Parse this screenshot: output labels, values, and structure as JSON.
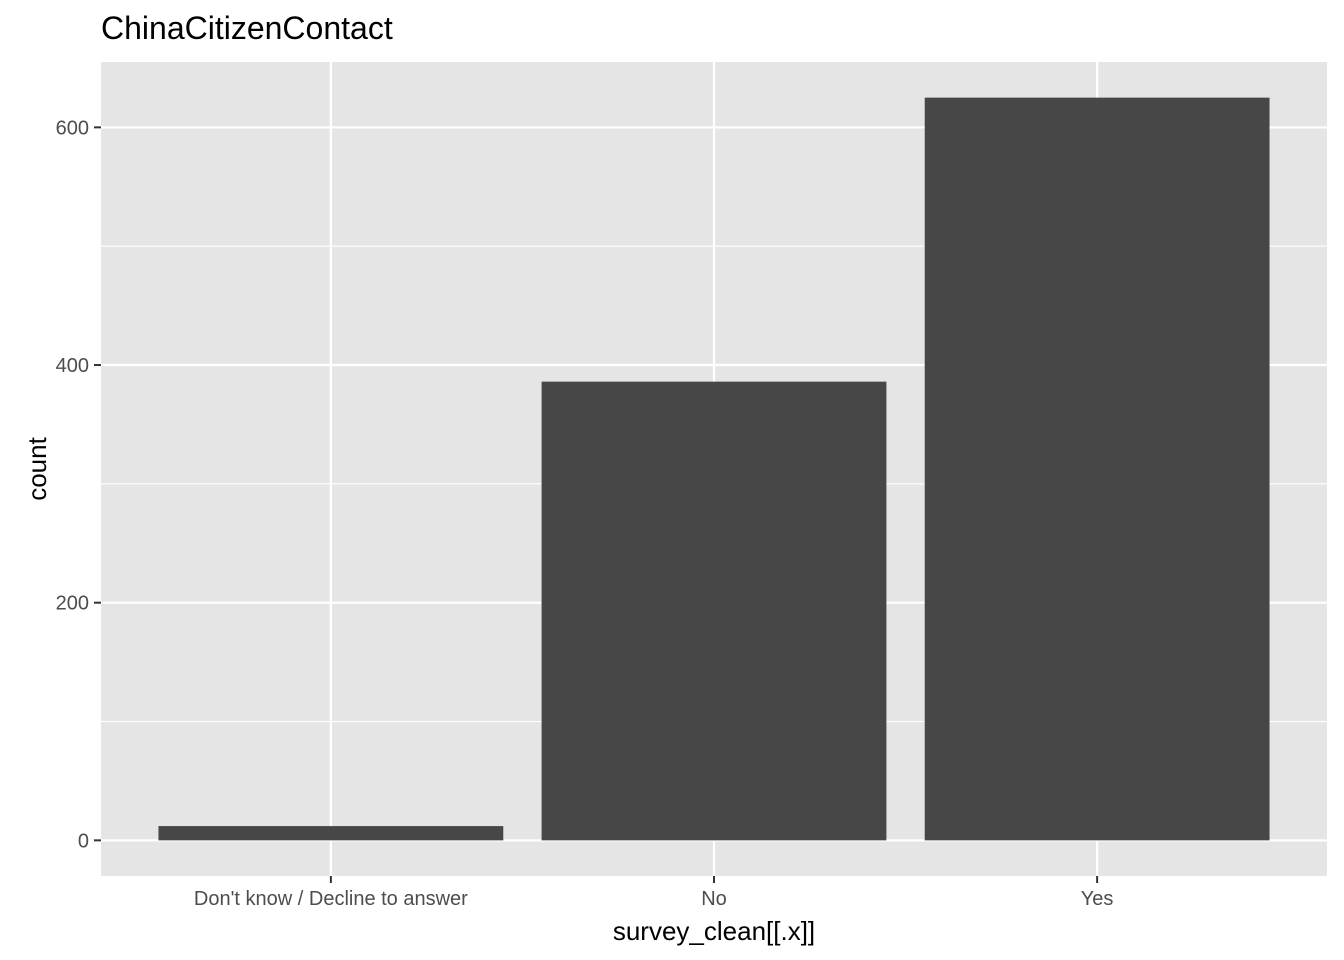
{
  "chart_data": {
    "type": "bar",
    "title": "ChinaCitizenContact",
    "xlabel": "survey_clean[[.x]]",
    "ylabel": "count",
    "categories": [
      "Don't know / Decline to answer",
      "No",
      "Yes"
    ],
    "values": [
      12,
      386,
      625
    ],
    "ylim": [
      -30,
      655
    ],
    "yticks": [
      0,
      200,
      400,
      600
    ],
    "yminor": [
      100,
      300,
      500
    ],
    "grid": true,
    "legend": "none",
    "colors": {
      "panel": "#e5e5e5",
      "grid": "#ffffff",
      "bar": "#474747",
      "tick_text": "#4d4d4d",
      "tick_mark": "#333333"
    }
  }
}
